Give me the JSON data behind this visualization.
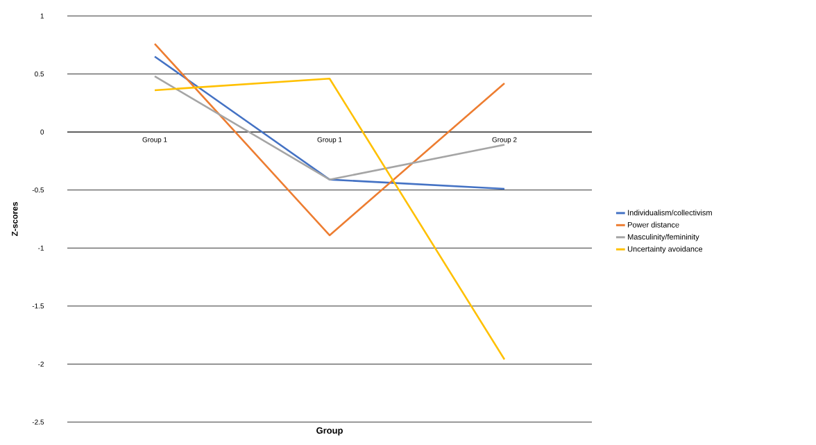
{
  "chart_data": {
    "type": "line",
    "xlabel": "Group",
    "ylabel": "Z-scores",
    "categories": [
      "Group 1",
      "Group 1",
      "Group 2"
    ],
    "series": [
      {
        "name": "Individualism/collectivism",
        "color": "#4472c4",
        "values": [
          0.65,
          -0.41,
          -0.49
        ]
      },
      {
        "name": "Power distance",
        "color": "#ed7d31",
        "values": [
          0.76,
          -0.89,
          0.42
        ]
      },
      {
        "name": "Masculinity/femininity",
        "color": "#a5a5a5",
        "values": [
          0.48,
          -0.41,
          -0.11
        ]
      },
      {
        "name": "Uncertainty avoidance",
        "color": "#ffc000",
        "values": [
          0.36,
          0.46,
          -1.96
        ]
      }
    ],
    "ylim": [
      -2.5,
      1
    ],
    "yticks": [
      -2.5,
      -2,
      -1.5,
      -1,
      -0.5,
      0,
      0.5,
      1
    ],
    "grid": "y",
    "legend": "right",
    "marker": "none",
    "line_style": "solid"
  }
}
